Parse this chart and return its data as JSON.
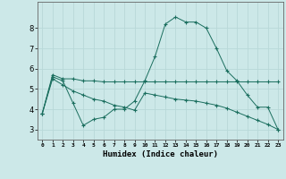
{
  "xlabel": "Humidex (Indice chaleur)",
  "background_color": "#cce8e8",
  "grid_color": "#b8d8d8",
  "line_color": "#1a6e5e",
  "xlim": [
    -0.5,
    23.5
  ],
  "ylim": [
    2.5,
    9.3
  ],
  "yticks": [
    3,
    4,
    5,
    6,
    7,
    8
  ],
  "xtick_labels": [
    "0",
    "1",
    "2",
    "3",
    "4",
    "5",
    "6",
    "7",
    "8",
    "9",
    "10",
    "11",
    "12",
    "13",
    "14",
    "15",
    "16",
    "17",
    "18",
    "19",
    "20",
    "21",
    "22",
    "23"
  ],
  "series1_x": [
    0,
    1,
    2,
    3,
    4,
    5,
    6,
    7,
    8,
    9,
    10,
    11,
    12,
    13,
    14,
    15,
    16,
    17,
    18,
    19,
    20,
    21,
    22,
    23
  ],
  "series1_y": [
    3.8,
    5.7,
    5.5,
    5.5,
    5.4,
    5.4,
    5.35,
    5.35,
    5.35,
    5.35,
    5.35,
    5.35,
    5.35,
    5.35,
    5.35,
    5.35,
    5.35,
    5.35,
    5.35,
    5.35,
    5.35,
    5.35,
    5.35,
    5.35
  ],
  "series2_x": [
    0,
    1,
    2,
    3,
    4,
    5,
    6,
    7,
    8,
    9,
    10,
    11,
    12,
    13,
    14,
    15,
    16,
    17,
    18,
    19,
    20,
    21,
    22,
    23
  ],
  "series2_y": [
    3.8,
    5.6,
    5.4,
    4.3,
    3.2,
    3.5,
    3.6,
    4.0,
    4.0,
    4.4,
    5.4,
    6.6,
    8.2,
    8.55,
    8.3,
    8.3,
    8.0,
    7.0,
    5.9,
    5.4,
    4.7,
    4.1,
    4.1,
    3.0
  ],
  "series3_x": [
    0,
    1,
    2,
    3,
    4,
    5,
    6,
    7,
    8,
    9,
    10,
    11,
    12,
    13,
    14,
    15,
    16,
    17,
    18,
    19,
    20,
    21,
    22,
    23
  ],
  "series3_y": [
    3.8,
    5.5,
    5.2,
    4.9,
    4.7,
    4.5,
    4.4,
    4.2,
    4.1,
    3.95,
    4.8,
    4.7,
    4.6,
    4.5,
    4.45,
    4.4,
    4.3,
    4.2,
    4.05,
    3.85,
    3.65,
    3.45,
    3.25,
    3.0
  ]
}
